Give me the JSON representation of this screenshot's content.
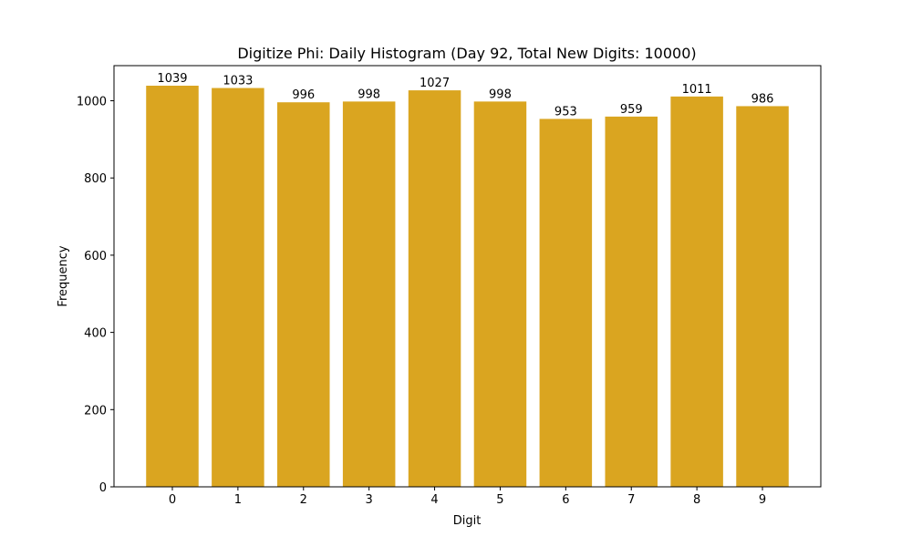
{
  "chart_data": {
    "type": "bar",
    "title": "Digitize Phi: Daily Histogram (Day 92, Total New Digits: 10000)",
    "x_label": "Digit",
    "y_label": "Frequency",
    "categories": [
      "0",
      "1",
      "2",
      "3",
      "4",
      "5",
      "6",
      "7",
      "8",
      "9"
    ],
    "values": [
      1039,
      1033,
      996,
      998,
      1027,
      998,
      953,
      959,
      1011,
      986
    ],
    "color": "#daa520",
    "ylim": [
      0,
      1090.95
    ],
    "yticks": [
      0,
      200,
      400,
      600,
      800,
      1000
    ],
    "grid": false
  }
}
